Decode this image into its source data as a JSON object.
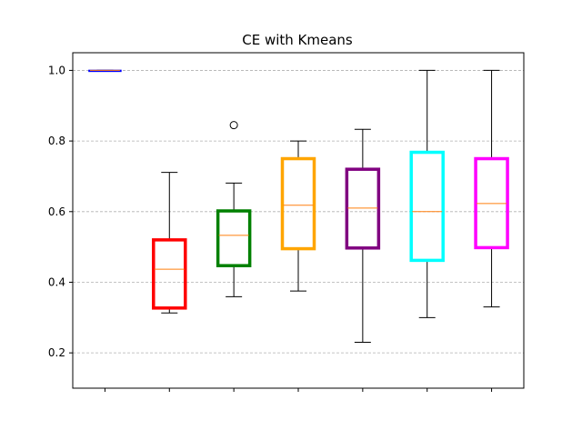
{
  "chart_data": {
    "type": "box",
    "title": "CE with Kmeans",
    "xlabel": "",
    "ylabel": "",
    "ylim": [
      0.1,
      1.05
    ],
    "yticks": [
      0.2,
      0.4,
      0.6,
      0.8,
      1.0
    ],
    "ytick_labels": [
      "0.2",
      "0.4",
      "0.6",
      "0.8",
      "1.0"
    ],
    "grid": {
      "y": true,
      "x": false,
      "style": "dashed"
    },
    "median_color": "#ff7f0e",
    "boxes": [
      {
        "color": "#0000ff",
        "whislo": 1.0,
        "q1": 1.0,
        "med": 1.0,
        "q3": 1.0,
        "whishi": 1.0,
        "fliers": []
      },
      {
        "color": "#ff0000",
        "whislo": 0.313,
        "q1": 0.327,
        "med": 0.437,
        "q3": 0.52,
        "whishi": 0.711,
        "fliers": []
      },
      {
        "color": "#008000",
        "whislo": 0.359,
        "q1": 0.447,
        "med": 0.533,
        "q3": 0.602,
        "whishi": 0.681,
        "fliers": [
          0.845
        ]
      },
      {
        "color": "#ffa500",
        "whislo": 0.375,
        "q1": 0.495,
        "med": 0.618,
        "q3": 0.75,
        "whishi": 0.8,
        "fliers": []
      },
      {
        "color": "#800080",
        "whislo": 0.23,
        "q1": 0.497,
        "med": 0.61,
        "q3": 0.72,
        "whishi": 0.833,
        "fliers": []
      },
      {
        "color": "#00ffff",
        "whislo": 0.3,
        "q1": 0.462,
        "med": 0.6,
        "q3": 0.768,
        "whishi": 1.0,
        "fliers": []
      },
      {
        "color": "#ff00ff",
        "whislo": 0.33,
        "q1": 0.498,
        "med": 0.623,
        "q3": 0.75,
        "whishi": 1.0,
        "fliers": []
      }
    ]
  }
}
